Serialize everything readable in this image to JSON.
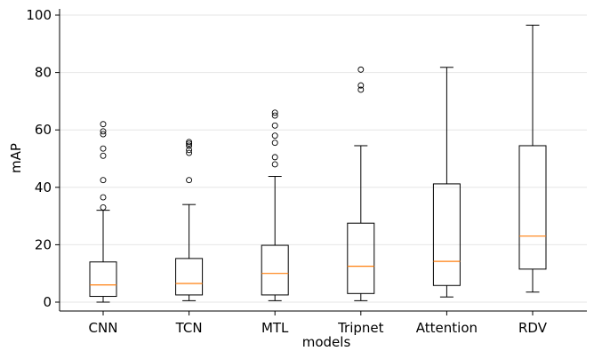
{
  "chart_data": {
    "type": "box",
    "xlabel": "models",
    "ylabel": "mAP",
    "ylim": [
      -3,
      101
    ],
    "yticks": [
      0,
      20,
      40,
      60,
      80,
      100
    ],
    "grid": "horizontal",
    "categories": [
      "CNN",
      "TCN",
      "MTL",
      "Tripnet",
      "Attention",
      "RDV"
    ],
    "boxes": [
      {
        "name": "CNN",
        "whisker_low": 0,
        "q1": 2,
        "median": 6,
        "q3": 14,
        "whisker_high": 32,
        "outliers": [
          33,
          36.5,
          42.5,
          51,
          53.5,
          58.5,
          59.5,
          62
        ]
      },
      {
        "name": "TCN",
        "whisker_low": 0.5,
        "q1": 2.5,
        "median": 6.5,
        "q3": 15.2,
        "whisker_high": 34,
        "outliers": [
          42.5,
          52,
          53,
          54.5,
          55.2,
          55.8
        ]
      },
      {
        "name": "MTL",
        "whisker_low": 0.5,
        "q1": 2.5,
        "median": 10,
        "q3": 19.8,
        "whisker_high": 43.8,
        "outliers": [
          48,
          50.5,
          55.5,
          58,
          61.5,
          65,
          66
        ]
      },
      {
        "name": "Tripnet",
        "whisker_low": 0.5,
        "q1": 3,
        "median": 12.5,
        "q3": 27.5,
        "whisker_high": 54.5,
        "outliers": [
          74,
          75.5,
          81
        ]
      },
      {
        "name": "Attention",
        "whisker_low": 1.8,
        "q1": 5.8,
        "median": 14.2,
        "q3": 41.2,
        "whisker_high": 81.8,
        "outliers": []
      },
      {
        "name": "RDV",
        "whisker_low": 3.5,
        "q1": 11.5,
        "median": 23,
        "q3": 54.5,
        "whisker_high": 96.5,
        "outliers": []
      }
    ],
    "colors": {
      "median": "#ff7f0e",
      "box": "#000000",
      "grid": "#e6e6e6"
    }
  }
}
